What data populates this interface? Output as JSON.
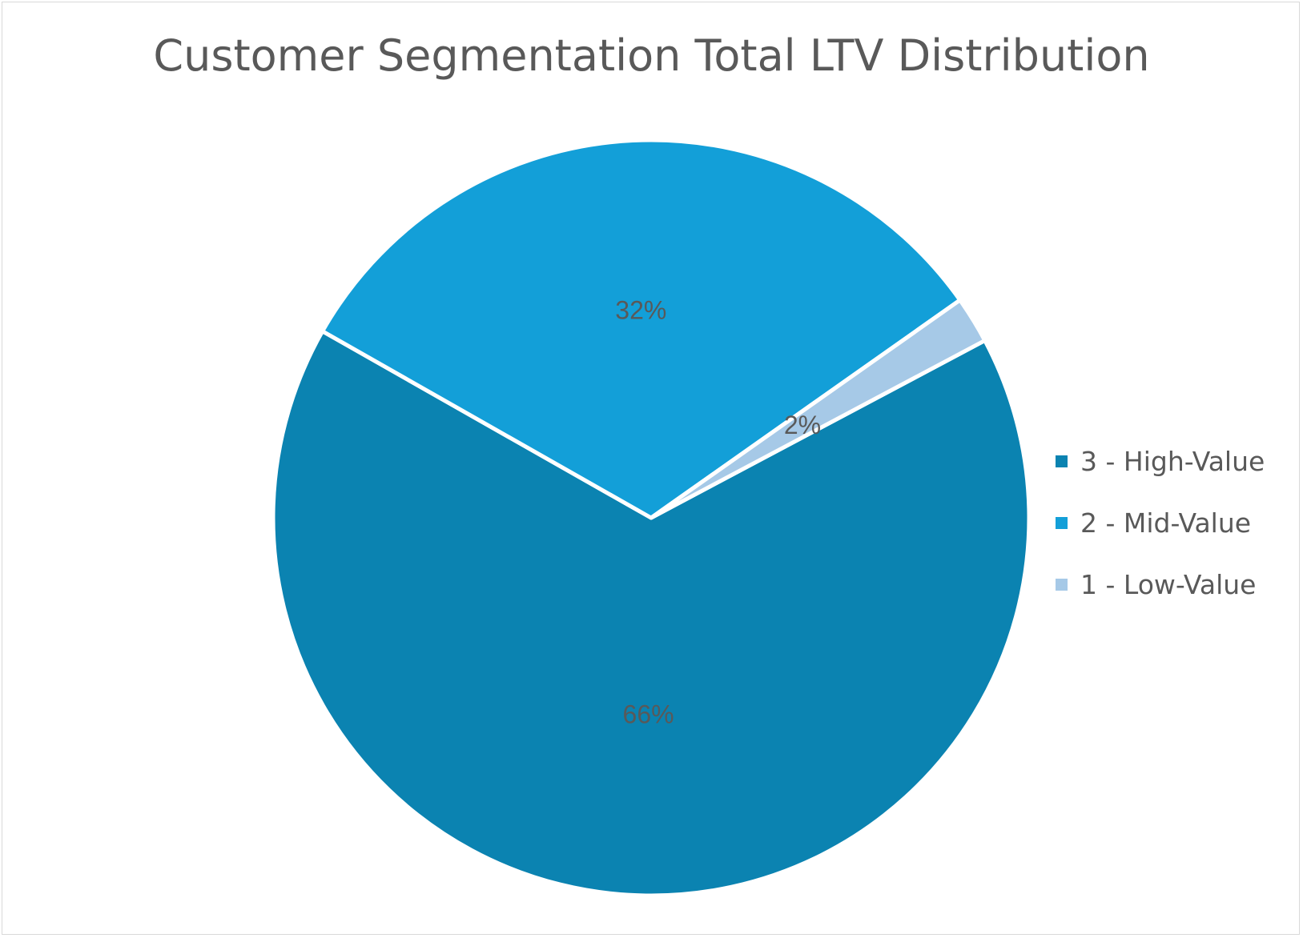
{
  "chart_data": {
    "type": "pie",
    "title": "Customer Segmentation Total LTV Distribution",
    "categories": [
      "3 - High-Value",
      "2 - Mid-Value",
      "1 - Low-Value"
    ],
    "values": [
      66,
      32,
      2
    ],
    "data_labels": [
      "66%",
      "32%",
      "2%"
    ],
    "colors": [
      "#0b83b1",
      "#139fd8",
      "#a6c9e7"
    ],
    "legend_position": "right",
    "start_angle_deg": 62,
    "direction": "clockwise"
  }
}
